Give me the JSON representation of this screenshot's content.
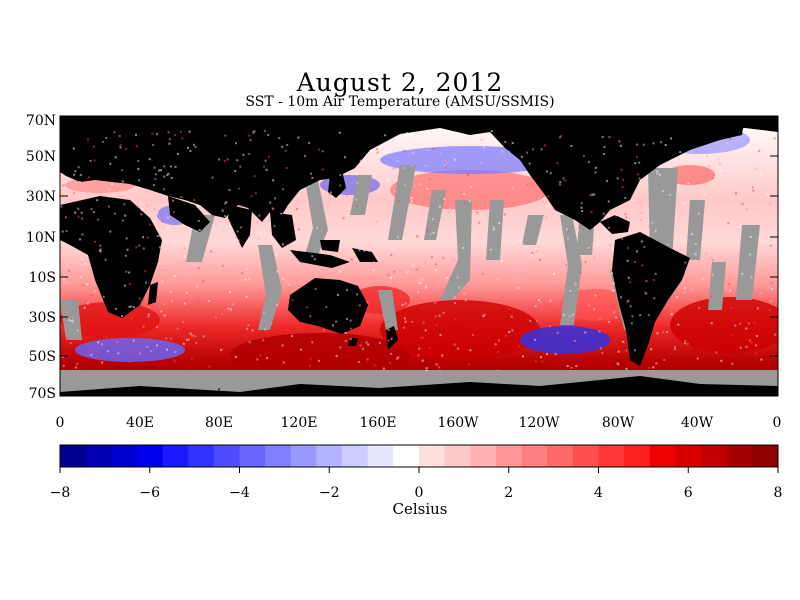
{
  "map": {
    "title": "August 2, 2012",
    "subtitle": "SST - 10m Air Temperature (AMSU/SSMIS)",
    "lat_labels": [
      "70N",
      "50N",
      "30N",
      "10N",
      "10S",
      "30S",
      "50S",
      "70S"
    ],
    "lon_labels": [
      "0",
      "40E",
      "80E",
      "120E",
      "160E",
      "160W",
      "120W",
      "80W",
      "40W",
      "0"
    ],
    "colors": {
      "land": "#000000",
      "no_data": "#999999",
      "cold": "#0000c8",
      "warm": "#c80000"
    }
  },
  "colorbar": {
    "tick_labels": [
      "-8",
      "-6",
      "-4",
      "-2",
      "0",
      "2",
      "4",
      "6",
      "8"
    ],
    "units_label": "Celsius",
    "colors": [
      "#000090",
      "#0000b0",
      "#0000d0",
      "#0000ee",
      "#1a1aff",
      "#3333ff",
      "#4d4dff",
      "#6666ff",
      "#8080ff",
      "#9999ff",
      "#b3b3ff",
      "#ccccff",
      "#e6e6ff",
      "#ffffff",
      "#ffe0e0",
      "#ffc8c8",
      "#ffb0b0",
      "#ff9898",
      "#ff8080",
      "#ff6868",
      "#ff5050",
      "#ff3838",
      "#ff2020",
      "#f00000",
      "#d80000",
      "#c00000",
      "#a80000",
      "#900000"
    ]
  }
}
